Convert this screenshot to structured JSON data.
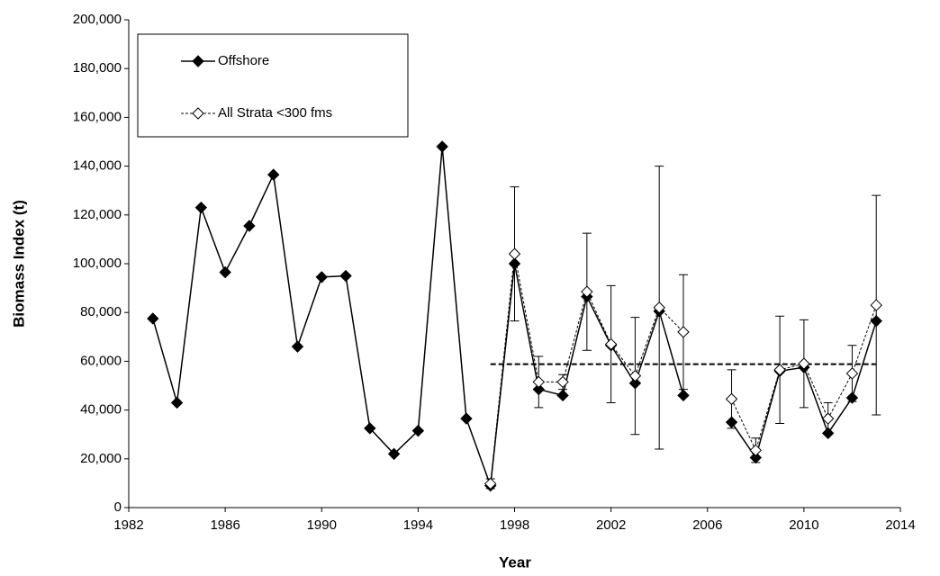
{
  "chart_data": {
    "type": "line",
    "x_label": "Year",
    "y_label": "Biomass Index (t)",
    "x": [
      1983,
      1984,
      1985,
      1986,
      1987,
      1988,
      1989,
      1990,
      1991,
      1992,
      1993,
      1994,
      1995,
      1996,
      1997,
      1998,
      1999,
      2000,
      2001,
      2002,
      2003,
      2004,
      2005,
      2006,
      2007,
      2008,
      2009,
      2010,
      2011,
      2012,
      2013
    ],
    "series": [
      {
        "name": "Offshore",
        "color": "#000000",
        "marker": "filled-diamond",
        "line_style": "solid",
        "values": [
          77500,
          43000,
          123000,
          96500,
          115500,
          136500,
          66000,
          94500,
          95000,
          32500,
          22000,
          31500,
          148000,
          36500,
          9000,
          100000,
          48500,
          46000,
          86500,
          66500,
          51000,
          80500,
          46000,
          null,
          35000,
          20500,
          56000,
          57500,
          30500,
          45000,
          76500
        ]
      },
      {
        "name": "All Strata <300 fms",
        "color": "#000000",
        "marker": "open-diamond",
        "line_style": "dotted",
        "values": [
          null,
          null,
          null,
          null,
          null,
          null,
          null,
          null,
          null,
          null,
          null,
          null,
          null,
          null,
          9800,
          104000,
          51500,
          51500,
          88500,
          67000,
          54000,
          82000,
          72000,
          null,
          44500,
          23500,
          56500,
          59000,
          36500,
          55000,
          83000
        ],
        "errors": [
          null,
          null,
          null,
          null,
          null,
          null,
          null,
          null,
          null,
          null,
          null,
          null,
          null,
          null,
          2000,
          27500,
          10500,
          3000,
          24000,
          24000,
          24000,
          58000,
          23500,
          null,
          12000,
          5000,
          22000,
          18000,
          6500,
          11500,
          45000
        ]
      }
    ],
    "reference_line": {
      "value": 58800,
      "x": [
        1997,
        2013
      ],
      "color": "#000000"
    },
    "xlim": [
      1982,
      2014
    ],
    "xticks": [
      1982,
      1986,
      1990,
      1994,
      1998,
      2002,
      2006,
      2010,
      2014
    ],
    "ylim": [
      0,
      200000
    ],
    "yticks": [
      0,
      {
        "value": 20000,
        "label": "20,000"
      },
      {
        "value": 40000,
        "label": "40,000"
      },
      {
        "value": 60000,
        "label": "60,000"
      },
      {
        "value": 80000,
        "label": "80,000"
      },
      {
        "value": 100000,
        "label": "100,000"
      },
      {
        "value": 120000,
        "label": "120,000"
      },
      {
        "value": 140000,
        "label": "140,000"
      },
      {
        "value": 160000,
        "label": "160,000"
      },
      {
        "value": 180000,
        "label": "180,000"
      },
      {
        "value": 200000,
        "label": "200,000"
      }
    ],
    "grid": false,
    "legend_position": "upper-left"
  }
}
